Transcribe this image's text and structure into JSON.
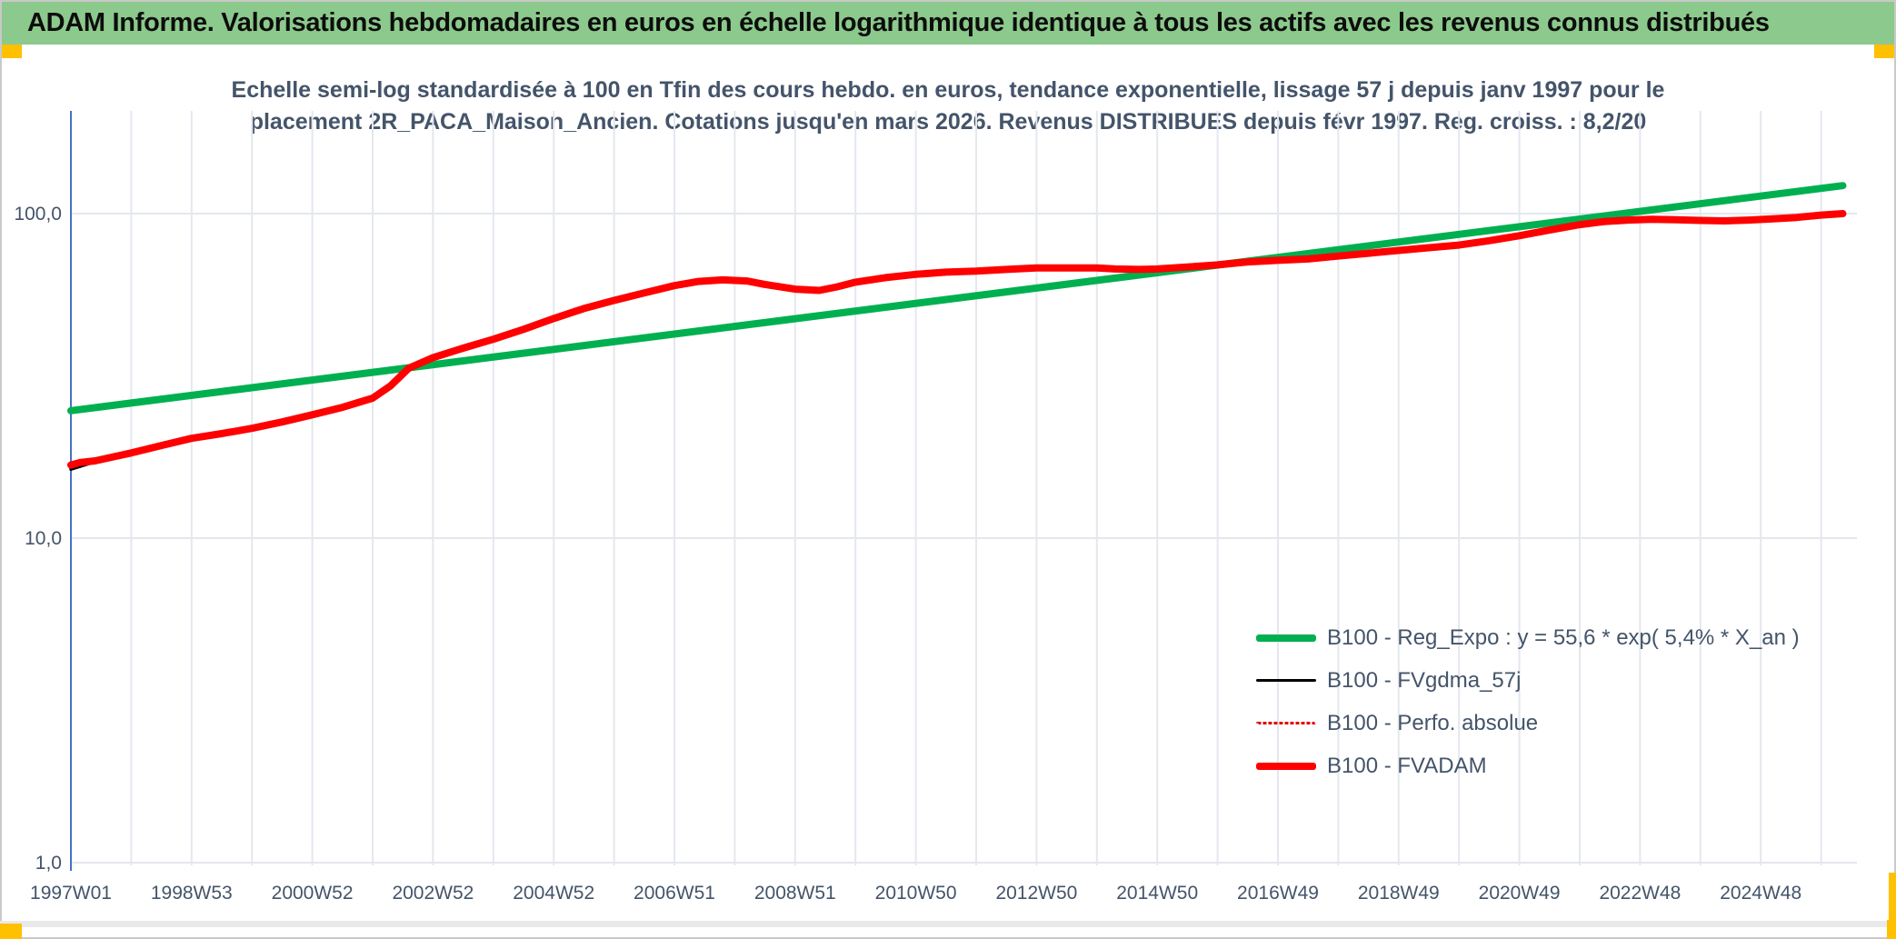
{
  "header": {
    "title": "ADAM Informe. Valorisations hebdomadaires en euros en échelle logarithmique identique à tous les actifs avec les revenus connus distribués",
    "bar_color": "#8CC98C",
    "accent_color": "#FFC000"
  },
  "chart_data": {
    "type": "line",
    "title_lines": [
      "Echelle semi-log standardisée à 100 en Tfin des cours hebdo. en euros, tendance exponentielle, lissage 57 j depuis janv 1997 pour le",
      "placement 2R_PACA_Maison_Ancien. Cotations jusqu'en mars 2026. Revenus DISTRIBUES depuis févr 1997. Reg. croiss. : 8,2/20"
    ],
    "x_axis": {
      "start_year": 1997,
      "end_year": 2026.6,
      "tick_years": [
        1997,
        1999,
        2001,
        2003,
        2005,
        2007,
        2009,
        2011,
        2013,
        2015,
        2017,
        2019,
        2021,
        2023,
        2025
      ],
      "tick_labels": [
        "1997W01",
        "1998W53",
        "2000W52",
        "2002W52",
        "2004W52",
        "2006W51",
        "2008W51",
        "2010W50",
        "2012W50",
        "2014W50",
        "2016W49",
        "2018W49",
        "2020W49",
        "2022W48",
        "2024W48"
      ],
      "grid": "yearly vertical gridlines"
    },
    "y_axis": {
      "scale": "log",
      "ylim": [
        1,
        200
      ],
      "tick_values": [
        100,
        10,
        1
      ],
      "tick_labels": [
        "100,0",
        "10,0",
        "1,0"
      ]
    },
    "colors": {
      "gridline": "#E4E7EE",
      "axis": "#4472C4",
      "green_series": "#00B050",
      "red_series": "#FF0000",
      "black_series": "#000000"
    },
    "legend_position": "inside right-center, no border",
    "draw_order": [
      1,
      2,
      0,
      3
    ],
    "series": [
      {
        "id": "reg-expo",
        "label": "B100 - Reg_Expo : y = 55,6 * exp( 5,4% * X_an )",
        "color": "#00B050",
        "style": "solid",
        "width": 8,
        "points": [
          [
            1997.0,
            24.7
          ],
          [
            2026.36,
            122.0
          ]
        ]
      },
      {
        "id": "fvgdma-57j",
        "label": "B100 - FVgdma_57j",
        "color": "#000000",
        "style": "solid",
        "width": 3.5,
        "note": "hidden beneath FVADAM except a sliver at the very start",
        "points": [
          [
            1997.0,
            16.3
          ],
          [
            1997.4,
            17.2
          ]
        ]
      },
      {
        "id": "perfo-absolue",
        "label": "B100 - Perfo. absolue",
        "color": "#DD0000",
        "style": "dotted",
        "width": 2.5,
        "note": "coincides with FVADAM, hidden beneath it",
        "points_same_as": "B100 - FVADAM"
      },
      {
        "id": "fvadam",
        "label": "B100 - FVADAM",
        "color": "#FF0000",
        "style": "solid",
        "width": 8,
        "points": [
          [
            1997.0,
            16.8
          ],
          [
            1997.15,
            17.1
          ],
          [
            1997.4,
            17.3
          ],
          [
            1997.7,
            17.8
          ],
          [
            1998.0,
            18.3
          ],
          [
            1998.5,
            19.3
          ],
          [
            1999.0,
            20.3
          ],
          [
            1999.5,
            21.0
          ],
          [
            2000.0,
            21.8
          ],
          [
            2000.5,
            22.8
          ],
          [
            2001.0,
            24.0
          ],
          [
            2001.5,
            25.3
          ],
          [
            2002.0,
            27.0
          ],
          [
            2002.3,
            29.5
          ],
          [
            2002.6,
            33.4
          ],
          [
            2003.0,
            36.0
          ],
          [
            2003.5,
            38.5
          ],
          [
            2004.0,
            41.0
          ],
          [
            2004.5,
            44.0
          ],
          [
            2005.0,
            47.5
          ],
          [
            2005.5,
            51.0
          ],
          [
            2006.0,
            54.0
          ],
          [
            2006.5,
            57.0
          ],
          [
            2007.0,
            60.0
          ],
          [
            2007.4,
            61.8
          ],
          [
            2007.8,
            62.5
          ],
          [
            2008.2,
            62.0
          ],
          [
            2008.5,
            60.5
          ],
          [
            2009.0,
            58.5
          ],
          [
            2009.4,
            58.0
          ],
          [
            2009.7,
            59.5
          ],
          [
            2010.0,
            61.5
          ],
          [
            2010.5,
            63.5
          ],
          [
            2011.0,
            65.0
          ],
          [
            2011.5,
            66.0
          ],
          [
            2012.0,
            66.5
          ],
          [
            2012.5,
            67.3
          ],
          [
            2013.0,
            68.0
          ],
          [
            2013.5,
            68.0
          ],
          [
            2014.0,
            68.0
          ],
          [
            2014.3,
            67.5
          ],
          [
            2014.7,
            67.3
          ],
          [
            2015.0,
            67.5
          ],
          [
            2015.5,
            68.5
          ],
          [
            2016.0,
            69.5
          ],
          [
            2016.5,
            71.0
          ],
          [
            2017.0,
            71.8
          ],
          [
            2017.5,
            72.5
          ],
          [
            2018.0,
            74.0
          ],
          [
            2018.5,
            75.5
          ],
          [
            2019.0,
            77.0
          ],
          [
            2019.5,
            78.5
          ],
          [
            2020.0,
            80.0
          ],
          [
            2020.5,
            82.5
          ],
          [
            2021.0,
            85.5
          ],
          [
            2021.5,
            89.0
          ],
          [
            2022.0,
            92.5
          ],
          [
            2022.4,
            94.5
          ],
          [
            2022.8,
            95.5
          ],
          [
            2023.2,
            96.0
          ],
          [
            2023.6,
            95.8
          ],
          [
            2024.0,
            95.3
          ],
          [
            2024.4,
            95.0
          ],
          [
            2024.8,
            95.5
          ],
          [
            2025.2,
            96.3
          ],
          [
            2025.6,
            97.3
          ],
          [
            2026.0,
            99.0
          ],
          [
            2026.36,
            100.0
          ]
        ]
      }
    ]
  }
}
